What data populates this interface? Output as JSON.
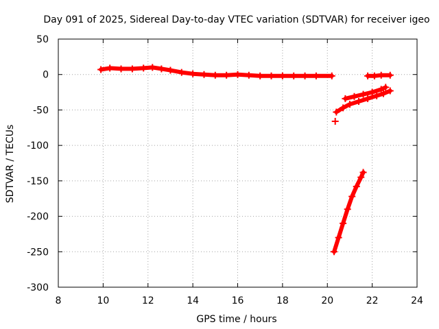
{
  "chart_data": {
    "type": "scatter",
    "title": "Day 091 of 2025, Sidereal Day-to-day VTEC variation (SDTVAR) for receiver igeo",
    "xlabel": "GPS time / hours",
    "ylabel": "SDTVAR / TECUs",
    "xlim": [
      8,
      24
    ],
    "ylim": [
      -300,
      50
    ],
    "xticks": [
      8,
      10,
      12,
      14,
      16,
      18,
      20,
      22,
      24
    ],
    "yticks": [
      50,
      0,
      -50,
      -100,
      -150,
      -200,
      -250,
      -300
    ],
    "grid": true,
    "color": "#ff0000",
    "series": [
      {
        "name": "main-track",
        "points": [
          [
            9.9,
            7
          ],
          [
            10.3,
            9
          ],
          [
            10.8,
            8
          ],
          [
            11.3,
            8
          ],
          [
            11.8,
            9
          ],
          [
            12.2,
            10
          ],
          [
            12.6,
            8
          ],
          [
            13.0,
            6
          ],
          [
            13.5,
            3
          ],
          [
            14.0,
            1
          ],
          [
            14.5,
            0
          ],
          [
            15.0,
            -1
          ],
          [
            15.5,
            -1
          ],
          [
            16.0,
            0
          ],
          [
            16.5,
            -1
          ],
          [
            17.0,
            -2
          ],
          [
            17.5,
            -2
          ],
          [
            18.0,
            -2
          ],
          [
            18.5,
            -2
          ],
          [
            19.0,
            -2
          ],
          [
            19.5,
            -2
          ],
          [
            20.2,
            -2
          ]
        ]
      },
      {
        "name": "late-arc-upper",
        "points": [
          [
            20.8,
            -34
          ],
          [
            21.2,
            -31
          ],
          [
            21.6,
            -28
          ],
          [
            22.0,
            -25
          ],
          [
            22.4,
            -21
          ],
          [
            22.6,
            -18
          ]
        ]
      },
      {
        "name": "late-arc-lower",
        "points": [
          [
            20.4,
            -53
          ],
          [
            20.7,
            -47
          ],
          [
            21.0,
            -42
          ],
          [
            21.4,
            -38
          ],
          [
            21.8,
            -34
          ],
          [
            22.2,
            -30
          ],
          [
            22.5,
            -27
          ],
          [
            22.8,
            -23
          ]
        ]
      },
      {
        "name": "late-flat",
        "points": [
          [
            21.8,
            -2
          ],
          [
            22.1,
            -2
          ],
          [
            22.4,
            -1
          ],
          [
            22.8,
            -1
          ]
        ]
      },
      {
        "name": "steep-rise",
        "points": [
          [
            20.3,
            -250
          ],
          [
            20.5,
            -230
          ],
          [
            20.7,
            -210
          ],
          [
            20.9,
            -190
          ],
          [
            21.1,
            -172
          ],
          [
            21.3,
            -158
          ],
          [
            21.5,
            -145
          ],
          [
            21.6,
            -138
          ]
        ]
      },
      {
        "name": "isolated",
        "points": [
          [
            20.35,
            -66
          ]
        ]
      }
    ]
  }
}
